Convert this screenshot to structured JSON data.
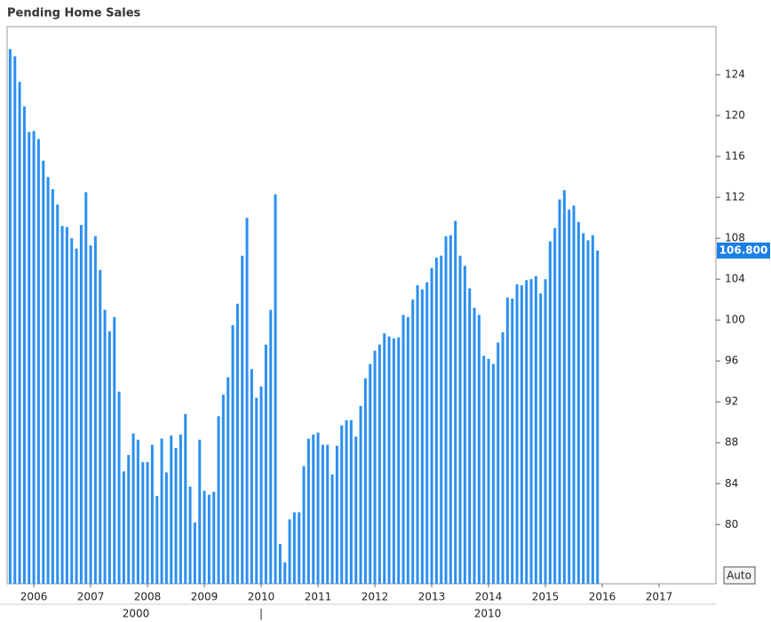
{
  "chart_data": {
    "type": "bar",
    "title": "Pending Home Sales",
    "x": [
      2005.583,
      2005.667,
      2005.75,
      2005.833,
      2005.917,
      2006,
      2006.083,
      2006.167,
      2006.25,
      2006.333,
      2006.417,
      2006.5,
      2006.583,
      2006.667,
      2006.75,
      2006.833,
      2006.917,
      2007,
      2007.083,
      2007.167,
      2007.25,
      2007.333,
      2007.417,
      2007.5,
      2007.583,
      2007.667,
      2007.75,
      2007.833,
      2007.917,
      2008,
      2008.083,
      2008.167,
      2008.25,
      2008.333,
      2008.417,
      2008.5,
      2008.583,
      2008.667,
      2008.75,
      2008.833,
      2008.917,
      2009,
      2009.083,
      2009.167,
      2009.25,
      2009.333,
      2009.417,
      2009.5,
      2009.583,
      2009.667,
      2009.75,
      2009.833,
      2009.917,
      2010,
      2010.083,
      2010.167,
      2010.25,
      2010.333,
      2010.417,
      2010.5,
      2010.583,
      2010.667,
      2010.75,
      2010.833,
      2010.917,
      2011,
      2011.083,
      2011.167,
      2011.25,
      2011.333,
      2011.417,
      2011.5,
      2011.583,
      2011.667,
      2011.75,
      2011.833,
      2011.917,
      2012,
      2012.083,
      2012.167,
      2012.25,
      2012.333,
      2012.417,
      2012.5,
      2012.583,
      2012.667,
      2012.75,
      2012.833,
      2012.917,
      2013,
      2013.083,
      2013.167,
      2013.25,
      2013.333,
      2013.417,
      2013.5,
      2013.583,
      2013.667,
      2013.75,
      2013.833,
      2013.917,
      2014,
      2014.083,
      2014.167,
      2014.25,
      2014.333,
      2014.417,
      2014.5,
      2014.583,
      2014.667,
      2014.75,
      2014.833,
      2014.917,
      2015,
      2015.083,
      2015.167,
      2015.25,
      2015.333,
      2015.417,
      2015.5,
      2015.583,
      2015.667,
      2015.75,
      2015.833,
      2015.917
    ],
    "values": [
      126.5,
      125.8,
      123.3,
      120.9,
      118.4,
      118.5,
      117.7,
      115.6,
      114.0,
      112.8,
      111.3,
      109.2,
      109.1,
      108.0,
      107.0,
      109.3,
      112.5,
      107.3,
      108.2,
      104.9,
      101.0,
      98.9,
      100.3,
      93.0,
      85.2,
      86.8,
      88.9,
      88.3,
      86.1,
      86.1,
      87.8,
      82.8,
      88.4,
      85.1,
      88.7,
      87.5,
      88.8,
      90.8,
      83.7,
      80.2,
      88.3,
      83.3,
      82.9,
      83.2,
      90.6,
      92.7,
      94.4,
      99.5,
      101.6,
      106.3,
      110.0,
      95.2,
      92.4,
      93.5,
      97.6,
      101.0,
      112.3,
      78.1,
      76.3,
      80.5,
      81.2,
      81.2,
      85.7,
      88.4,
      88.8,
      89.0,
      87.8,
      87.8,
      84.9,
      87.7,
      89.7,
      90.2,
      90.2,
      88.6,
      91.6,
      94.3,
      95.7,
      97.0,
      97.6,
      98.7,
      98.4,
      98.2,
      98.3,
      100.5,
      100.3,
      102.0,
      103.4,
      103.0,
      103.7,
      105.1,
      106.1,
      106.3,
      108.2,
      108.3,
      109.7,
      106.3,
      105.3,
      103.1,
      101.2,
      100.5,
      96.5,
      96.2,
      95.7,
      97.8,
      98.8,
      102.2,
      102.1,
      103.5,
      103.4,
      103.9,
      104.0,
      104.3,
      102.6,
      104.0,
      107.7,
      109.0,
      111.8,
      112.7,
      110.8,
      111.2,
      109.6,
      108.5,
      107.8,
      108.3,
      106.8
    ],
    "color": "#2b8ff0",
    "xlim": [
      2005.53,
      2018.0
    ],
    "xticks": [
      2006,
      2007,
      2008,
      2009,
      2010,
      2011,
      2012,
      2013,
      2014,
      2015,
      2016,
      2017
    ],
    "ylim": [
      74.2,
      128.7
    ],
    "yticks": [
      80,
      84,
      88,
      92,
      96,
      100,
      104,
      108,
      112,
      116,
      120,
      124
    ],
    "y_axis_side": "right",
    "current_value": {
      "value": 106.8,
      "label": "106.800"
    },
    "secondary_labels": [
      "2000",
      "|",
      "2010"
    ],
    "button": "Auto"
  }
}
